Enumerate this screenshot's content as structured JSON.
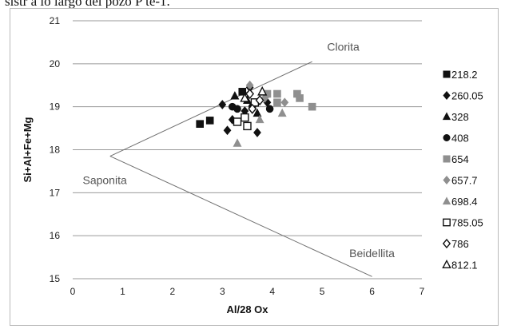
{
  "page": {
    "caption": "sistr a lo largo del pozo P te-1."
  },
  "chart_data": {
    "type": "scatter",
    "title": "",
    "xlabel": "Al/28 Ox",
    "ylabel": "Si+Al+Fe+Mg",
    "xlim": [
      0,
      7
    ],
    "ylim": [
      15,
      21
    ],
    "xticks": [
      "0",
      "1",
      "2",
      "3",
      "4",
      "5",
      "6",
      "7"
    ],
    "yticks": [
      "15",
      "16",
      "17",
      "18",
      "19",
      "20",
      "21"
    ],
    "grid": "horizontal",
    "legend_position": "right",
    "reference_lines": [
      {
        "points": [
          [
            0.75,
            17.85
          ],
          [
            4.8,
            20.05
          ]
        ]
      },
      {
        "points": [
          [
            0.75,
            17.85
          ],
          [
            6.0,
            15.05
          ]
        ]
      }
    ],
    "annotations": [
      {
        "text": "Clorita",
        "x": 5.1,
        "y": 20.3
      },
      {
        "text": "Saponita",
        "x": 0.2,
        "y": 17.2
      },
      {
        "text": "Beidellita",
        "x": 6.0,
        "y": 15.5
      }
    ],
    "series": [
      {
        "name": "218.2",
        "marker": "square",
        "color": "#111111",
        "points": [
          [
            2.55,
            18.6
          ],
          [
            2.75,
            18.68
          ],
          [
            3.4,
            19.35
          ]
        ]
      },
      {
        "name": "260.05",
        "marker": "diamond",
        "color": "#111111",
        "points": [
          [
            3.1,
            18.45
          ],
          [
            3.2,
            18.7
          ],
          [
            3.45,
            18.9
          ],
          [
            3.7,
            18.4
          ],
          [
            3.9,
            19.1
          ],
          [
            3.55,
            19.45
          ],
          [
            3.0,
            19.05
          ]
        ]
      },
      {
        "name": "328",
        "marker": "triangle",
        "color": "#111111",
        "points": [
          [
            3.25,
            19.25
          ],
          [
            3.5,
            19.15
          ],
          [
            3.7,
            18.85
          ]
        ]
      },
      {
        "name": "408",
        "marker": "circle",
        "color": "#111111",
        "points": [
          [
            3.2,
            19.0
          ],
          [
            3.3,
            18.95
          ],
          [
            3.6,
            19.0
          ],
          [
            3.95,
            18.95
          ]
        ]
      },
      {
        "name": "654",
        "marker": "square",
        "color": "#8f8f8f",
        "points": [
          [
            3.9,
            19.3
          ],
          [
            4.1,
            19.3
          ],
          [
            4.5,
            19.3
          ],
          [
            4.55,
            19.2
          ],
          [
            4.8,
            19.0
          ],
          [
            4.1,
            19.1
          ]
        ]
      },
      {
        "name": "657.7",
        "marker": "diamond",
        "color": "#8f8f8f",
        "points": [
          [
            3.55,
            19.5
          ],
          [
            4.25,
            19.1
          ],
          [
            3.85,
            19.2
          ]
        ]
      },
      {
        "name": "698.4",
        "marker": "triangle",
        "color": "#8f8f8f",
        "points": [
          [
            3.3,
            18.15
          ],
          [
            4.2,
            18.85
          ],
          [
            3.75,
            18.7
          ]
        ]
      },
      {
        "name": "785.05",
        "marker": "square-open",
        "color": "#111111",
        "points": [
          [
            3.3,
            18.65
          ],
          [
            3.45,
            18.75
          ],
          [
            3.65,
            19.1
          ],
          [
            3.5,
            18.55
          ]
        ]
      },
      {
        "name": "786",
        "marker": "diamond-open",
        "color": "#111111",
        "points": [
          [
            3.55,
            19.3
          ],
          [
            3.75,
            19.15
          ],
          [
            3.6,
            18.95
          ]
        ]
      },
      {
        "name": "812.1",
        "marker": "triangle-open",
        "color": "#111111",
        "points": [
          [
            3.8,
            19.35
          ],
          [
            3.45,
            19.2
          ]
        ]
      }
    ]
  }
}
